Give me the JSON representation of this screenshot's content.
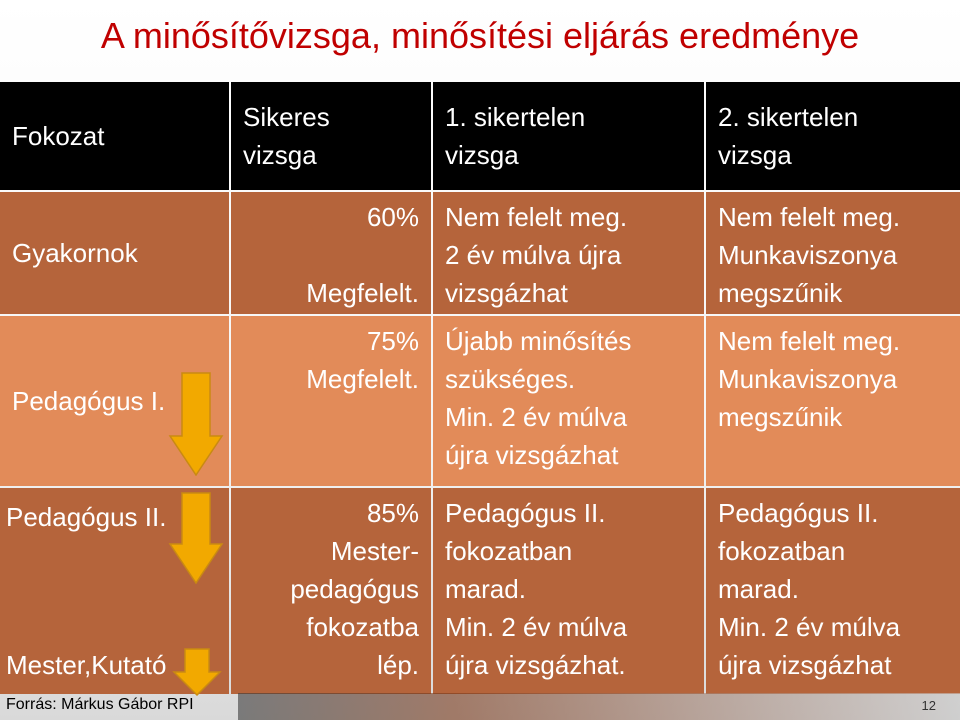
{
  "title": "A minősítővizsga, minősítési eljárás eredménye",
  "header": {
    "col1": [
      "Fokozat"
    ],
    "col2": [
      "Sikeres",
      "vizsga"
    ],
    "col3": [
      "1. sikertelen",
      "vizsga"
    ],
    "col4": [
      "2. sikertelen",
      "vizsga"
    ]
  },
  "rows": [
    {
      "grade": [
        "Gyakornok"
      ],
      "success": [
        "60%",
        "",
        "Megfelelt."
      ],
      "fail1": [
        "Nem felelt meg.",
        "2 év múlva újra",
        "vizsgázhat"
      ],
      "fail2": [
        "Nem felelt meg.",
        "Munkaviszonya",
        "megszűnik"
      ]
    },
    {
      "grade": [
        "Pedagógus I."
      ],
      "success": [
        "75%",
        "Megfelelt."
      ],
      "fail1": [
        "Újabb minősítés",
        "szükséges.",
        "Min. 2 év múlva",
        "újra vizsgázhat"
      ],
      "fail2": [
        "Nem felelt meg.",
        "Munkaviszonya",
        "megszűnik"
      ]
    },
    {
      "grade": [
        "Pedagógus II.",
        "Mester,Kutató"
      ],
      "success": [
        "85%",
        "Mester-",
        "pedagógus",
        "fokozatba",
        "lép."
      ],
      "fail1": [
        "Pedagógus II.",
        "fokozatban",
        "marad.",
        "Min. 2 év múlva",
        "újra vizsgázhat."
      ],
      "fail2": [
        "Pedagógus II.",
        "fokozatban",
        "marad.",
        "Min. 2 év múlva",
        "újra vizsgázhat"
      ]
    }
  ],
  "footer": {
    "source": "Forrás: Márkus Gábor RPI",
    "page": "12"
  },
  "colors": {
    "title": "#c00000",
    "header_bg": "#000000",
    "row_dark": "#b5643b",
    "row_light": "#e28b59",
    "arrow_fill": "#f2a900"
  }
}
